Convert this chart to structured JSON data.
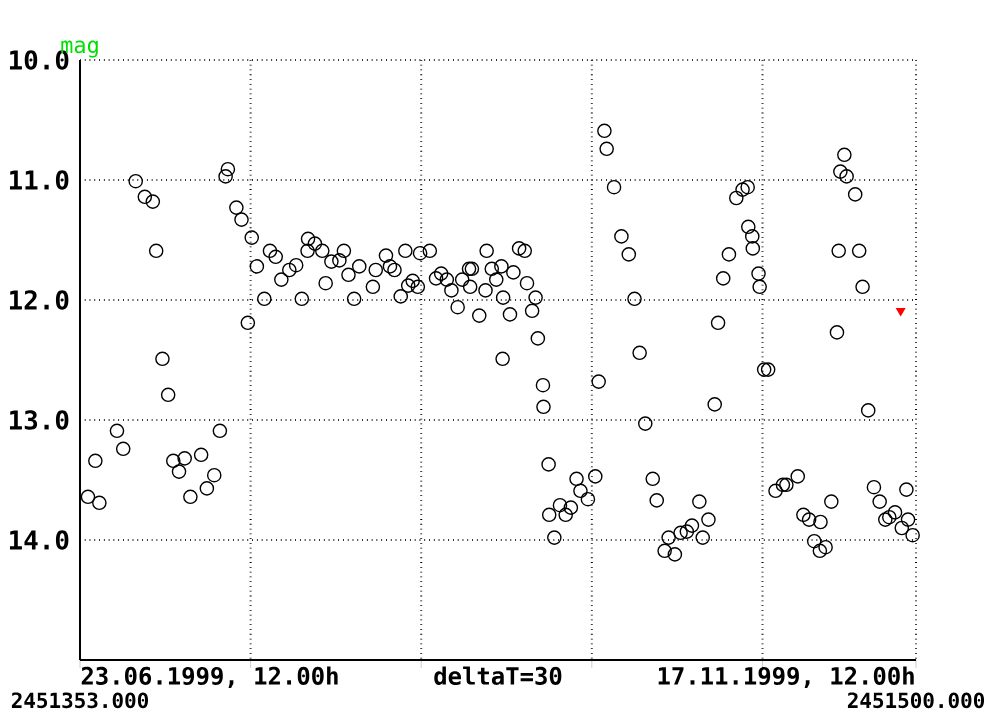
{
  "chart_data": {
    "type": "scatter",
    "ylabel": "mag",
    "xlim": [
      2451353,
      2451500
    ],
    "ylim": [
      15,
      10
    ],
    "xticks": [
      {
        "value": 2451353,
        "label": "2451353.000"
      },
      {
        "value": 2451383,
        "label": null
      },
      {
        "value": 2451413,
        "label": null
      },
      {
        "value": 2451443,
        "label": null
      },
      {
        "value": 2451473,
        "label": null
      },
      {
        "value": 2451500,
        "label": "2451500.000"
      }
    ],
    "xlabel": "deltaT=30",
    "yticks": [
      {
        "value": 10,
        "label": "10.0"
      },
      {
        "value": 11,
        "label": "11.0"
      },
      {
        "value": 12,
        "label": "12.0"
      },
      {
        "value": 13,
        "label": "13.0"
      },
      {
        "value": 14,
        "label": "14.0"
      }
    ],
    "grid": true,
    "annotations": [
      "23.06.1999, 12.00h",
      "17.11.1999, 12.00h"
    ],
    "series": [
      {
        "color": "#000000",
        "marker": "circle",
        "x": [
          2451354.4,
          2451355.7,
          2451356.4,
          2451359.5,
          2451360.6,
          2451362.8,
          2451364.4,
          2451365.8,
          2451366.4,
          2451367.5,
          2451368.5,
          2451369.4,
          2451370.4,
          2451371.4,
          2451372.4,
          2451374.3,
          2451375.3,
          2451376.6,
          2451377.6,
          2451378.6,
          2451379.0,
          2451380.5,
          2451381.4,
          2451382.5,
          2451383.2,
          2451384.1,
          2451385.4,
          2451386.4,
          2451387.4,
          2451388.4,
          2451389.8,
          2451391.0,
          2451392.0,
          2451393.0,
          2451393.1,
          2451394.3,
          2451395.6,
          2451396.2,
          2451397.2,
          2451398.6,
          2451399.4,
          2451400.2,
          2451401.2,
          2451402.1,
          2451404.5,
          2451405.0,
          2451406.8,
          2451407.5,
          2451408.3,
          2451409.4,
          2451410.2,
          2451410.7,
          2451411.5,
          2451412.4,
          2451412.8,
          2451414.5,
          2451415.6,
          2451416.5,
          2451417.5,
          2451418.3,
          2451419.4,
          2451420.2,
          2451421.4,
          2451421.6,
          2451421.9,
          2451423.2,
          2451424.3,
          2451424.5,
          2451425.4,
          2451426.2,
          2451427.1,
          2451427.3,
          2451427.4,
          2451428.6,
          2451429.2,
          2451430.2,
          2451431.2,
          2451431.6,
          2451432.5,
          2451433.1,
          2451433.5,
          2451434.4,
          2451434.5,
          2451435.4,
          2451435.5,
          2451436.4,
          2451437.4,
          2451438.4,
          2451439.3,
          2451440.3,
          2451441.0,
          2451442.3,
          2451443.6,
          2451444.2,
          2451445.2,
          2451445.6,
          2451446.9,
          2451448.2,
          2451449.5,
          2451450.5,
          2451451.4,
          2451452.4,
          2451453.7,
          2451454.4,
          2451455.8,
          2451456.5,
          2451457.6,
          2451458.6,
          2451459.7,
          2451460.6,
          2451461.9,
          2451462.5,
          2451463.5,
          2451464.6,
          2451465.2,
          2451466.1,
          2451467.1,
          2451468.4,
          2451469.5,
          2451470.4,
          2451470.5,
          2451471.2,
          2451471.3,
          2451472.3,
          2451472.5,
          2451473.3,
          2451474.0,
          2451475.3,
          2451476.6,
          2451477.2,
          2451479.2,
          2451480.2,
          2451481.2,
          2451482.1,
          2451483.1,
          2451483.2,
          2451484.1,
          2451485.1,
          2451486.1,
          2451486.4,
          2451486.7,
          2451487.4,
          2451487.8,
          2451489.3,
          2451490.0,
          2451490.6,
          2451491.6,
          2451492.6,
          2451493.6,
          2451494.6,
          2451495.3,
          2451496.3,
          2451497.5,
          2451498.3,
          2451498.6,
          2451499.4
        ],
        "values": [
          13.64,
          13.34,
          13.69,
          13.09,
          13.24,
          11.01,
          11.14,
          11.18,
          11.59,
          12.49,
          12.79,
          13.34,
          13.43,
          13.32,
          13.64,
          13.29,
          13.57,
          13.46,
          13.09,
          10.97,
          10.91,
          11.23,
          11.33,
          12.19,
          11.48,
          11.72,
          11.99,
          11.59,
          11.64,
          11.83,
          11.75,
          11.71,
          11.99,
          11.59,
          11.49,
          11.53,
          11.59,
          11.86,
          11.68,
          11.67,
          11.59,
          11.79,
          11.99,
          11.72,
          11.89,
          11.75,
          11.63,
          11.72,
          11.75,
          11.97,
          11.59,
          11.88,
          11.84,
          11.89,
          11.61,
          11.59,
          11.82,
          11.78,
          11.83,
          11.92,
          12.06,
          11.83,
          11.74,
          11.89,
          11.74,
          12.13,
          11.92,
          11.59,
          11.74,
          11.83,
          11.72,
          12.49,
          11.98,
          12.12,
          11.77,
          11.57,
          11.59,
          11.86,
          12.09,
          11.98,
          12.32,
          12.71,
          12.89,
          13.37,
          13.79,
          13.98,
          13.71,
          13.79,
          13.73,
          13.49,
          13.59,
          13.66,
          13.47,
          12.68,
          10.59,
          10.74,
          11.06,
          11.47,
          11.62,
          11.99,
          12.44,
          13.03,
          13.49,
          13.67,
          14.09,
          13.98,
          14.12,
          13.94,
          13.93,
          13.88,
          13.68,
          13.98,
          13.83,
          12.87,
          12.19,
          11.82,
          11.62,
          11.15,
          11.08,
          11.06,
          11.39,
          11.47,
          11.57,
          11.78,
          11.89,
          12.58,
          12.58,
          13.59,
          13.54,
          13.54,
          13.47,
          13.79,
          13.83,
          14.01,
          14.09,
          13.85,
          14.06,
          13.68,
          12.27,
          11.59,
          10.93,
          10.79,
          10.97,
          11.12,
          11.59,
          11.89,
          12.92,
          13.56,
          13.68,
          13.83,
          13.81,
          13.77,
          13.9,
          13.58,
          13.83,
          13.96
        ]
      },
      {
        "color": "#ff0000",
        "marker": "triangle",
        "x": [
          2451497.3
        ],
        "values": [
          12.09
        ]
      }
    ]
  }
}
